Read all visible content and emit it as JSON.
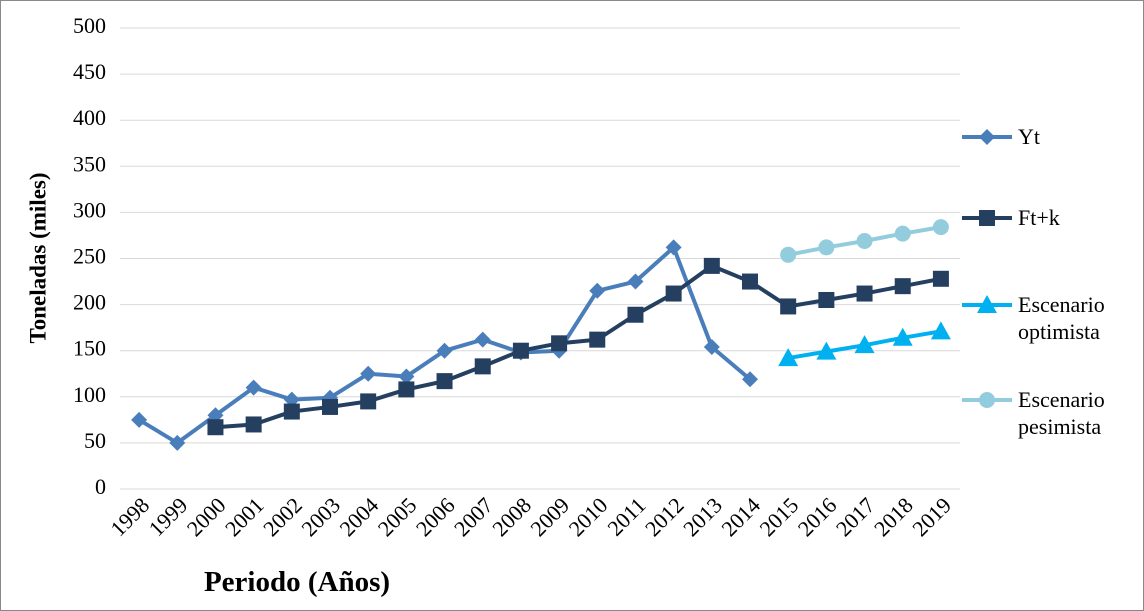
{
  "chart_data": {
    "type": "line",
    "x_label": "Periodo (Años)",
    "y_label": "Toneladas (miles)",
    "categories": [
      "1998",
      "1999",
      "2000",
      "2001",
      "2002",
      "2003",
      "2004",
      "2005",
      "2006",
      "2007",
      "2008",
      "2009",
      "2010",
      "2011",
      "2012",
      "2013",
      "2014",
      "2015",
      "2016",
      "2017",
      "2018",
      "2019"
    ],
    "series": [
      {
        "name": "Yt",
        "color": "#4a7ebb",
        "marker": "diamond",
        "values": [
          75,
          50,
          80,
          110,
          97,
          99,
          125,
          122,
          150,
          162,
          148,
          150,
          215,
          225,
          262,
          154,
          119,
          null,
          null,
          null,
          null,
          null
        ]
      },
      {
        "name": "Ft+k",
        "color": "#243f60",
        "marker": "square",
        "values": [
          null,
          null,
          67,
          70,
          84,
          89,
          95,
          108,
          117,
          133,
          150,
          158,
          162,
          189,
          212,
          242,
          225,
          198,
          205,
          212,
          220,
          228
        ]
      },
      {
        "name": "Escenario optimista",
        "color": "#00b0f0",
        "marker": "triangle",
        "values": [
          null,
          null,
          null,
          null,
          null,
          null,
          null,
          null,
          null,
          null,
          null,
          null,
          null,
          null,
          null,
          null,
          null,
          142,
          149,
          156,
          164,
          171
        ]
      },
      {
        "name": "Escenario pesimista",
        "color": "#93cddd",
        "marker": "circle",
        "values": [
          null,
          null,
          null,
          null,
          null,
          null,
          null,
          null,
          null,
          null,
          null,
          null,
          null,
          null,
          null,
          null,
          null,
          254,
          262,
          269,
          277,
          284
        ]
      }
    ],
    "ylim": [
      0,
      500
    ],
    "yticks": [
      0,
      50,
      100,
      150,
      200,
      250,
      300,
      350,
      400,
      450,
      500
    ],
    "grid": true,
    "legend": "right"
  }
}
